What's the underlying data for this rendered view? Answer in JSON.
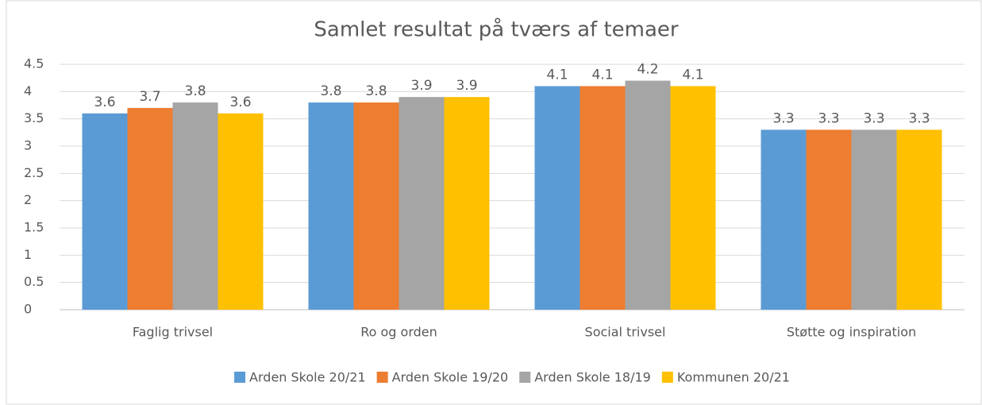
{
  "chart_data": {
    "type": "bar",
    "title": "Samlet resultat på tværs af temaer",
    "categories": [
      "Faglig trivsel",
      "Ro og orden",
      "Social trivsel",
      "Støtte og inspiration"
    ],
    "series": [
      {
        "name": "Arden Skole 20/21",
        "color": "#5b9bd5",
        "values": [
          3.6,
          3.8,
          4.1,
          3.3
        ]
      },
      {
        "name": "Arden Skole 19/20",
        "color": "#ed7d31",
        "values": [
          3.7,
          3.8,
          4.1,
          3.3
        ]
      },
      {
        "name": "Arden Skole 18/19",
        "color": "#a5a5a5",
        "values": [
          3.8,
          3.9,
          4.2,
          3.3
        ]
      },
      {
        "name": "Kommunen 20/21",
        "color": "#ffc000",
        "values": [
          3.6,
          3.9,
          4.1,
          3.3
        ]
      }
    ],
    "ylim": [
      0,
      4.5
    ],
    "yticks": [
      0,
      0.5,
      1,
      1.5,
      2,
      2.5,
      3,
      3.5,
      4,
      4.5
    ],
    "grid": true,
    "legend": "bottom"
  }
}
